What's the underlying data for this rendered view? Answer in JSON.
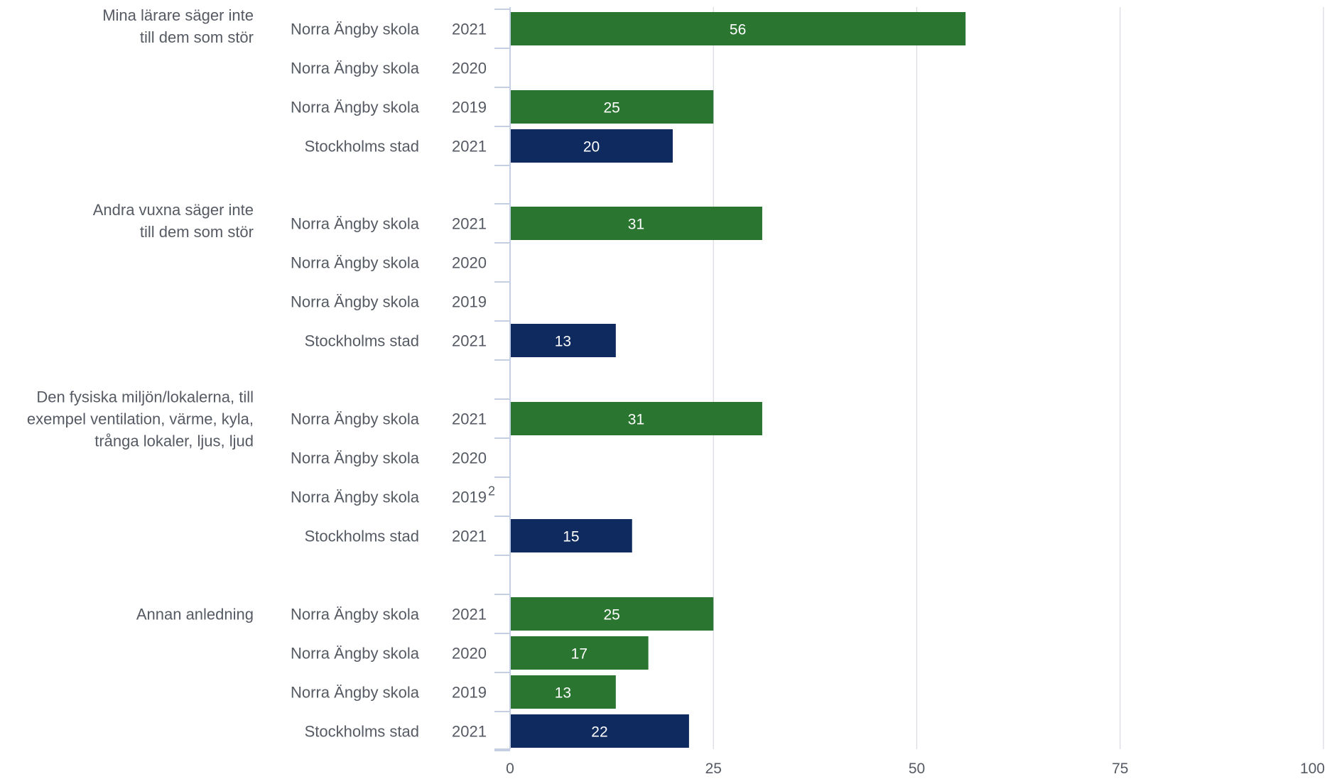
{
  "chart_data": {
    "type": "bar",
    "orientation": "horizontal",
    "xlim": [
      0,
      100
    ],
    "xticks": [
      0,
      25,
      50,
      75,
      100
    ],
    "grid": true,
    "colors": {
      "Norra Ängby skola": "#2a7631",
      "Stockholms stad": "#0e2a5f"
    },
    "groups": [
      {
        "label": "Mina lärare säger inte till dem som stör",
        "label_lines": [
          "Mina lärare säger inte",
          "till dem som stör"
        ],
        "rows": [
          {
            "entity": "Norra Ängby skola",
            "year": "2021",
            "value": 56
          },
          {
            "entity": "Norra Ängby skola",
            "year": "2020",
            "value": null
          },
          {
            "entity": "Norra Ängby skola",
            "year": "2019",
            "value": 25
          },
          {
            "entity": "Stockholms stad",
            "year": "2021",
            "value": 20
          }
        ]
      },
      {
        "label": "Andra vuxna säger inte till dem som stör",
        "label_lines": [
          "Andra vuxna säger inte",
          "till dem som stör"
        ],
        "rows": [
          {
            "entity": "Norra Ängby skola",
            "year": "2021",
            "value": 31
          },
          {
            "entity": "Norra Ängby skola",
            "year": "2020",
            "value": null
          },
          {
            "entity": "Norra Ängby skola",
            "year": "2019",
            "value": null
          },
          {
            "entity": "Stockholms stad",
            "year": "2021",
            "value": 13
          }
        ]
      },
      {
        "label": "Den fysiska miljön/lokalerna, till exempel ventilation, värme, kyla, trånga lokaler, ljus, ljud",
        "label_lines": [
          "Den fysiska miljön/lokalerna, till",
          "exempel ventilation, värme, kyla,",
          "trånga lokaler, ljus, ljud"
        ],
        "rows": [
          {
            "entity": "Norra Ängby skola",
            "year": "2021",
            "value": 31
          },
          {
            "entity": "Norra Ängby skola",
            "year": "2020",
            "value": null
          },
          {
            "entity": "Norra Ängby skola",
            "year": "2019",
            "value": null,
            "note": "2"
          },
          {
            "entity": "Stockholms stad",
            "year": "2021",
            "value": 15
          }
        ]
      },
      {
        "label": "Annan anledning",
        "label_lines": [
          "Annan anledning"
        ],
        "rows": [
          {
            "entity": "Norra Ängby skola",
            "year": "2021",
            "value": 25
          },
          {
            "entity": "Norra Ängby skola",
            "year": "2020",
            "value": 17
          },
          {
            "entity": "Norra Ängby skola",
            "year": "2019",
            "value": 13
          },
          {
            "entity": "Stockholms stad",
            "year": "2021",
            "value": 22
          }
        ]
      }
    ]
  }
}
